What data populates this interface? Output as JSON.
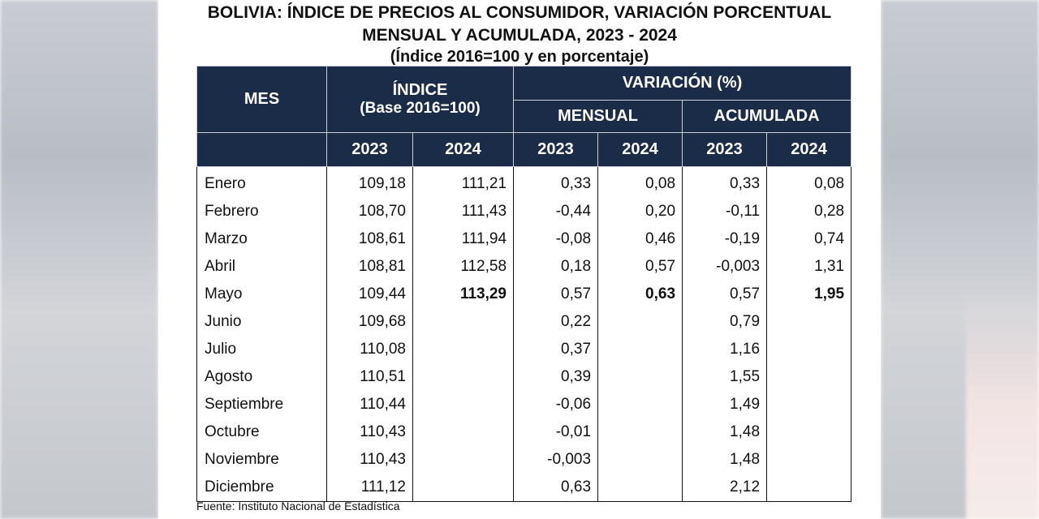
{
  "title": {
    "line1": "BOLIVIA: ÍNDICE DE PRECIOS AL CONSUMIDOR, VARIACIÓN PORCENTUAL",
    "line2": "MENSUAL Y ACUMULADA, 2023 - 2024",
    "line3": "(Índice 2016=100 y en porcentaje)"
  },
  "headers": {
    "mes": "MES",
    "indice_line1": "ÍNDICE",
    "indice_line2": "(Base 2016=100)",
    "variacion": "VARIACIÓN (%)",
    "mensual": "MENSUAL",
    "acumulada": "ACUMULADA",
    "years": [
      "2023",
      "2024",
      "2023",
      "2024",
      "2023",
      "2024"
    ]
  },
  "rows": [
    [
      "Enero",
      "109,18",
      "111,21",
      "0,33",
      "0,08",
      "0,33",
      "0,08"
    ],
    [
      "Febrero",
      "108,70",
      "111,43",
      "-0,44",
      "0,20",
      "-0,11",
      "0,28"
    ],
    [
      "Marzo",
      "108,61",
      "111,94",
      "-0,08",
      "0,46",
      "-0,19",
      "0,74"
    ],
    [
      "Abril",
      "108,81",
      "112,58",
      "0,18",
      "0,57",
      "-0,003",
      "1,31"
    ],
    [
      "Mayo",
      "109,44",
      "113,29",
      "0,57",
      "0,63",
      "0,57",
      "1,95"
    ],
    [
      "Junio",
      "109,68",
      "",
      "0,22",
      "",
      "0,79",
      ""
    ],
    [
      "Julio",
      "110,08",
      "",
      "0,37",
      "",
      "1,16",
      ""
    ],
    [
      "Agosto",
      "110,51",
      "",
      "0,39",
      "",
      "1,55",
      ""
    ],
    [
      "Septiembre",
      "110,44",
      "",
      "-0,06",
      "",
      "1,49",
      ""
    ],
    [
      "Octubre",
      "110,43",
      "",
      "-0,01",
      "",
      "1,48",
      ""
    ],
    [
      "Noviembre",
      "110,43",
      "",
      "-0,003",
      "",
      "1,48",
      ""
    ],
    [
      "Diciembre",
      "111,12",
      "",
      "0,63",
      "",
      "2,12",
      ""
    ]
  ],
  "footnote": "Fuente: Instituto Nacional de Estadística",
  "colors": {
    "header_bg": "#1a2c48",
    "header_text": "#ffffff"
  }
}
